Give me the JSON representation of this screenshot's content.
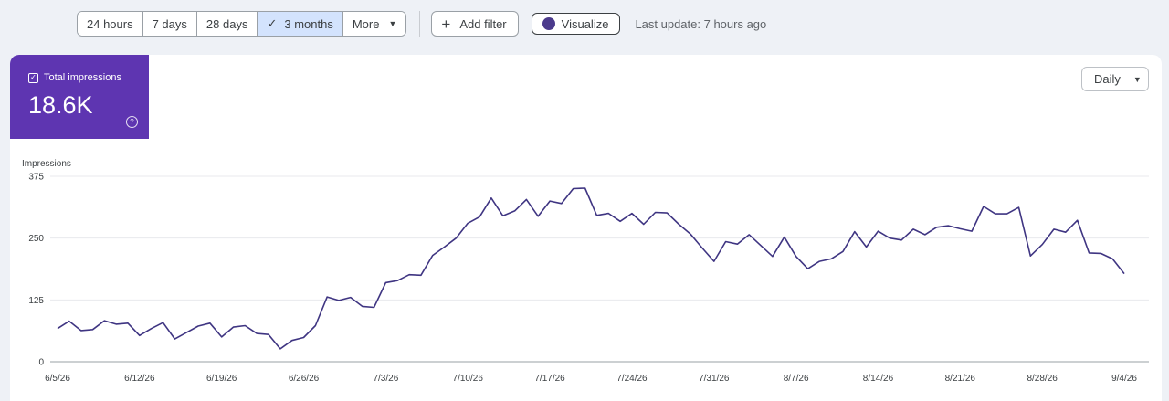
{
  "toolbar": {
    "ranges": [
      "24 hours",
      "7 days",
      "28 days",
      "3 months"
    ],
    "active_range": "3 months",
    "more_label": "More",
    "add_filter_label": "Add filter",
    "visualize_label": "Visualize",
    "last_update": "Last update: 7 hours ago"
  },
  "metric_card": {
    "label": "Total impressions",
    "value": "18.6K",
    "accent_color": "#5e35b1"
  },
  "granularity": {
    "selected": "Daily"
  },
  "chart_data": {
    "type": "line",
    "ylabel": "Impressions",
    "y_ticks": [
      0,
      125,
      250,
      375
    ],
    "ylim": [
      0,
      375
    ],
    "x_ticks": [
      "6/5/26",
      "6/12/26",
      "6/19/26",
      "6/26/26",
      "7/3/26",
      "7/10/26",
      "7/17/26",
      "7/24/26",
      "7/31/26",
      "8/7/26",
      "8/14/26",
      "8/21/26",
      "8/28/26",
      "9/4/26"
    ],
    "grid": "horizontal",
    "line_color": "#3f3582",
    "series": [
      {
        "values": [
          67,
          82,
          63,
          65,
          83,
          76,
          78,
          53,
          67,
          79,
          46,
          59,
          72,
          78,
          50,
          70,
          73,
          57,
          55,
          26,
          43,
          49,
          73,
          131,
          124,
          130,
          112,
          110,
          160,
          164,
          176,
          175,
          215,
          232,
          250,
          280,
          293,
          331,
          295,
          305,
          328,
          294,
          325,
          320,
          350,
          351,
          296,
          300,
          284,
          300,
          278,
          302,
          301,
          278,
          258,
          230,
          203,
          243,
          238,
          257,
          235,
          213,
          252,
          213,
          188,
          203,
          208,
          223,
          263,
          232,
          264,
          250,
          246,
          268,
          257,
          272,
          275,
          269,
          264,
          314,
          299,
          299,
          312,
          214,
          237,
          268,
          262,
          286,
          220,
          219,
          208,
          178
        ]
      }
    ]
  }
}
